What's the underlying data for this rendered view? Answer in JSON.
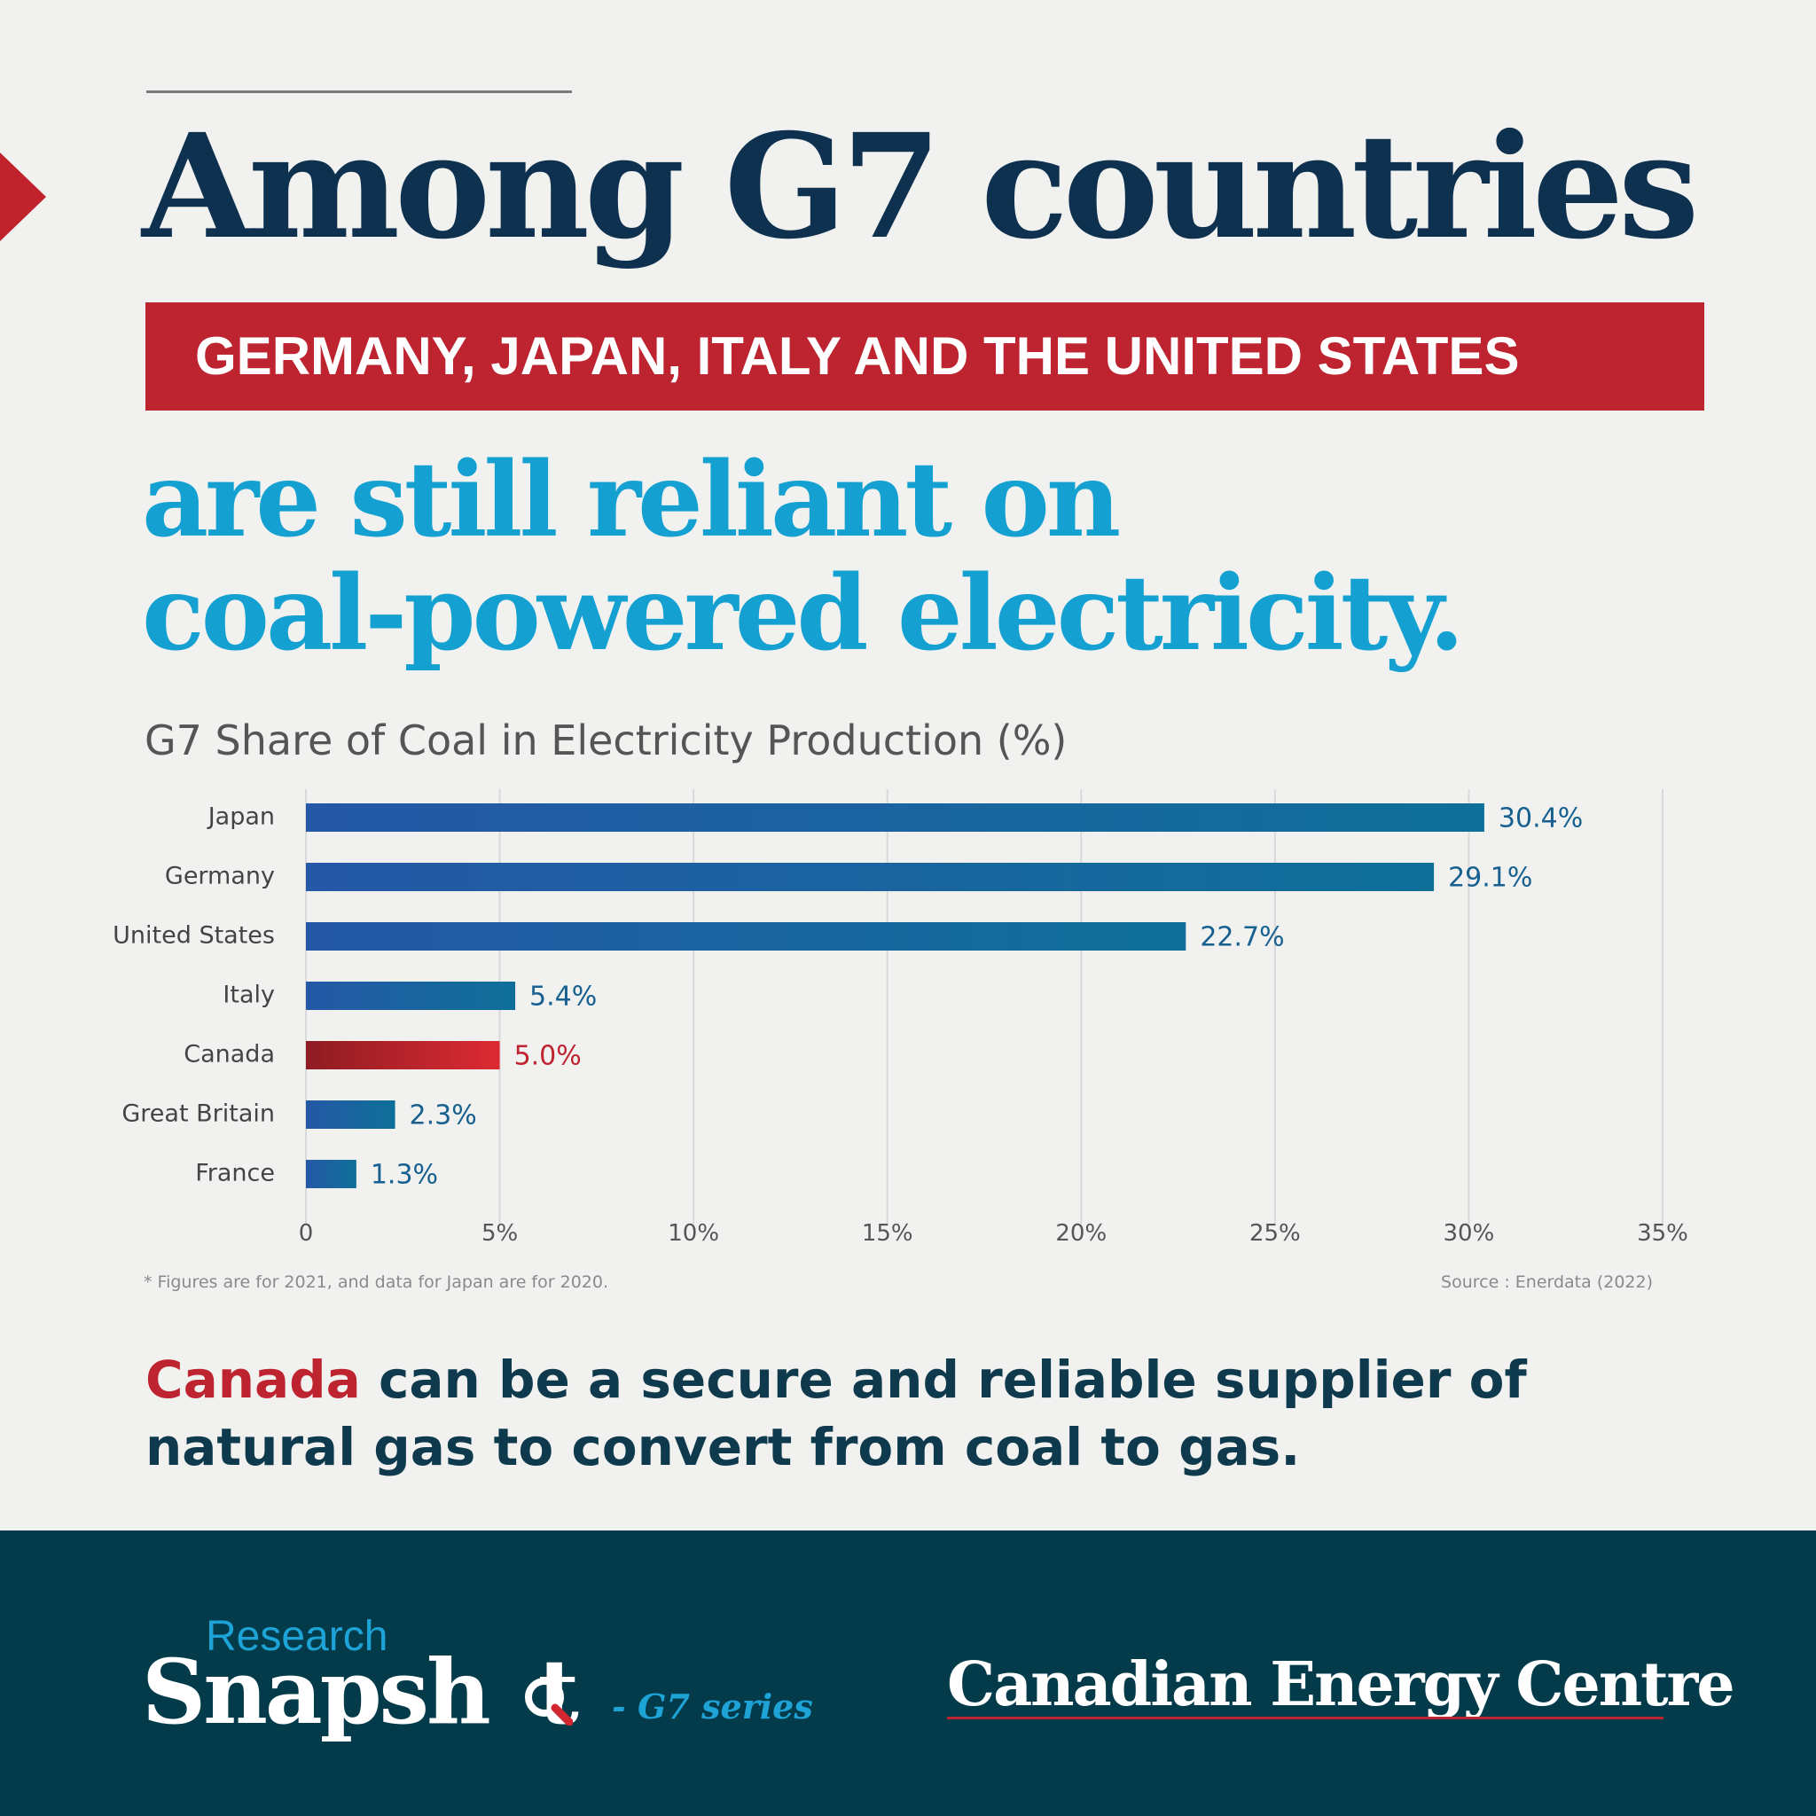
{
  "header": {
    "headline": "Among G7 countries",
    "banner": "GERMANY, JAPAN, ITALY AND THE UNITED STATES",
    "subhead_line1": "are still reliant on",
    "subhead_line2": "coal-powered electricity."
  },
  "colors": {
    "navy": "#0f3150",
    "red": "#be2330",
    "cyan": "#14a1d1",
    "bar_blue": "#1f5fa8",
    "bar_teal": "#0e6f99",
    "canada_red": "#d0262f",
    "footer_bg": "#043b4b",
    "grid": "#d9d9d9"
  },
  "chart_data": {
    "type": "bar",
    "orientation": "horizontal",
    "title": "G7 Share of Coal in Electricity Production (%)",
    "categories": [
      "Japan",
      "Germany",
      "United States",
      "Italy",
      "Canada",
      "Great Britain",
      "France"
    ],
    "values": [
      30.4,
      29.1,
      22.7,
      5.4,
      5.0,
      2.3,
      1.3
    ],
    "value_labels": [
      "30.4%",
      "29.1%",
      "22.7%",
      "5.4%",
      "5.0%",
      "2.3%",
      "1.3%"
    ],
    "highlight": "Canada",
    "xlim": [
      0,
      35
    ],
    "xticks": [
      0,
      5,
      10,
      15,
      20,
      25,
      30,
      35
    ],
    "xtick_labels": [
      "0",
      "5%",
      "10%",
      "15%",
      "20%",
      "25%",
      "30%",
      "35%"
    ],
    "grid": true,
    "xlabel": "",
    "ylabel": ""
  },
  "notes": {
    "footnote": "* Figures are for 2021, and data for Japan are for 2020.",
    "source": "Source : Enerdata (2022)"
  },
  "closing": {
    "highlight": "Canada",
    "line1_rest": " can be a secure and reliable supplier of",
    "line2": "natural gas to convert from coal to gas."
  },
  "footer": {
    "research": "Research",
    "snapshot": "Snapsh",
    "snapshot_end": "t",
    "series": "- G7 series",
    "org": "Canadian Energy Centre",
    "magnifier_icon": "magnifier-icon"
  }
}
